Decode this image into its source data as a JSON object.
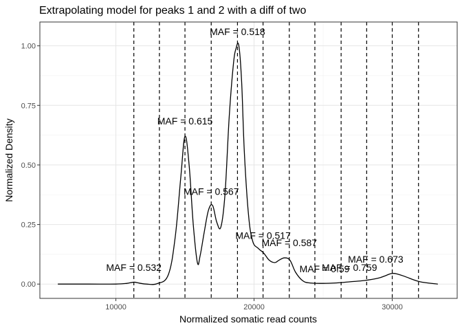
{
  "chart_data": {
    "type": "line",
    "title": "Extrapolating model for peaks 1 and 2 with a diff of two",
    "xlabel": "Normalized somatic read counts",
    "ylabel": "Normalized Density",
    "xlim": [
      4500,
      34700
    ],
    "ylim": [
      -0.06,
      1.1
    ],
    "x_ticks": [
      10000,
      20000,
      30000
    ],
    "x_tick_labels": [
      "10000",
      "20000",
      "30000"
    ],
    "y_ticks": [
      0,
      0.25,
      0.5,
      0.75,
      1.0
    ],
    "y_tick_labels": [
      "0.00",
      "0.25",
      "0.50",
      "0.75",
      "1.00"
    ],
    "grid": true,
    "series": [
      {
        "x": [
          5800,
          8000,
          10000,
          10800,
          11300,
          11700,
          12200,
          13000,
          13800,
          14300,
          14700,
          15000,
          15300,
          15600,
          15900,
          16100,
          16400,
          16700,
          17000,
          17300,
          17600,
          17900,
          18200,
          18500,
          18700,
          18900,
          19100,
          19300,
          19600,
          19900,
          20300,
          20700,
          21100,
          21500,
          21800,
          22200,
          22600,
          23000,
          23500,
          24000,
          25000,
          26000,
          27000,
          28000,
          29000,
          29500,
          30000,
          30500,
          31000,
          32000,
          33300
        ],
        "y": [
          0.0,
          0.0,
          0.0,
          0.003,
          0.008,
          0.004,
          0.0,
          0.002,
          0.04,
          0.2,
          0.45,
          0.62,
          0.5,
          0.25,
          0.09,
          0.12,
          0.22,
          0.31,
          0.33,
          0.26,
          0.24,
          0.38,
          0.7,
          0.92,
          0.99,
          1.0,
          0.85,
          0.55,
          0.29,
          0.18,
          0.15,
          0.13,
          0.1,
          0.09,
          0.1,
          0.11,
          0.1,
          0.05,
          0.015,
          0.005,
          0.003,
          0.005,
          0.01,
          0.015,
          0.025,
          0.035,
          0.045,
          0.04,
          0.03,
          0.01,
          0.0
        ]
      }
    ],
    "vlines": [
      11300,
      13150,
      15000,
      16900,
      18800,
      20650,
      22550,
      24400,
      26300,
      28150,
      30000,
      31900
    ],
    "annotations": [
      {
        "x": 11300,
        "y": 0.055,
        "text": "MAF = 0.532"
      },
      {
        "x": 15000,
        "y": 0.67,
        "text": "MAF = 0.615"
      },
      {
        "x": 16900,
        "y": 0.375,
        "text": "MAF = 0.567"
      },
      {
        "x": 18800,
        "y": 1.045,
        "text": "MAF = 0.518"
      },
      {
        "x": 20650,
        "y": 0.19,
        "text": "MAF = 0.517"
      },
      {
        "x": 22550,
        "y": 0.16,
        "text": "MAF = 0.587"
      },
      {
        "x": 25100,
        "y": 0.05,
        "text": "MAF = 0.59"
      },
      {
        "x": 26900,
        "y": 0.055,
        "text": "MAF = 0.759"
      },
      {
        "x": 28800,
        "y": 0.09,
        "text": "MAF = 0.673"
      }
    ]
  }
}
